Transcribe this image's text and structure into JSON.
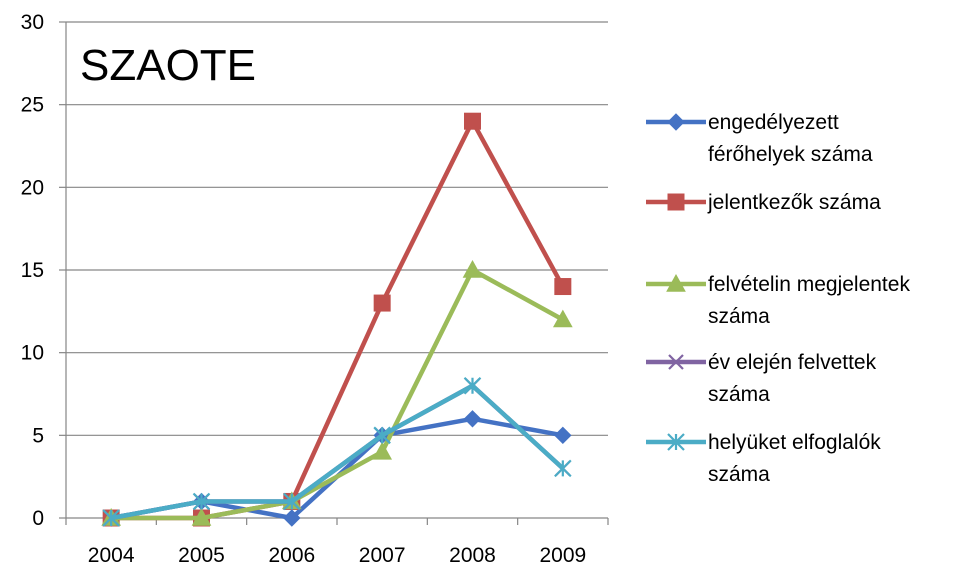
{
  "chart_data": {
    "type": "line",
    "title": "SZAOTE",
    "xlabel": "",
    "ylabel": "",
    "categories": [
      "2004",
      "2005",
      "2006",
      "2007",
      "2008",
      "2009"
    ],
    "ylim": [
      0,
      30
    ],
    "yticks": [
      0,
      5,
      10,
      15,
      20,
      25,
      30
    ],
    "grid": true,
    "legend_position": "right",
    "series": [
      {
        "name": "engedélyezett férőhelyek száma",
        "color": "#4472C4",
        "marker": "diamond",
        "values": [
          0,
          1,
          0,
          5,
          6,
          5
        ]
      },
      {
        "name": "jelentkezők száma",
        "color": "#C0504D",
        "marker": "square",
        "values": [
          0,
          0,
          1,
          13,
          24,
          14
        ]
      },
      {
        "name": "felvételin megjelentek száma",
        "color": "#9BBB59",
        "marker": "triangle",
        "values": [
          0,
          0,
          1,
          4,
          15,
          12
        ]
      },
      {
        "name": "év elején felvettek száma",
        "color": "#8064A2",
        "marker": "x",
        "values": [
          0,
          1,
          1,
          5,
          8,
          3
        ]
      },
      {
        "name": "helyüket elfoglalók száma",
        "color": "#4BACC6",
        "marker": "star",
        "values": [
          0,
          1,
          1,
          5,
          8,
          3
        ]
      }
    ]
  }
}
